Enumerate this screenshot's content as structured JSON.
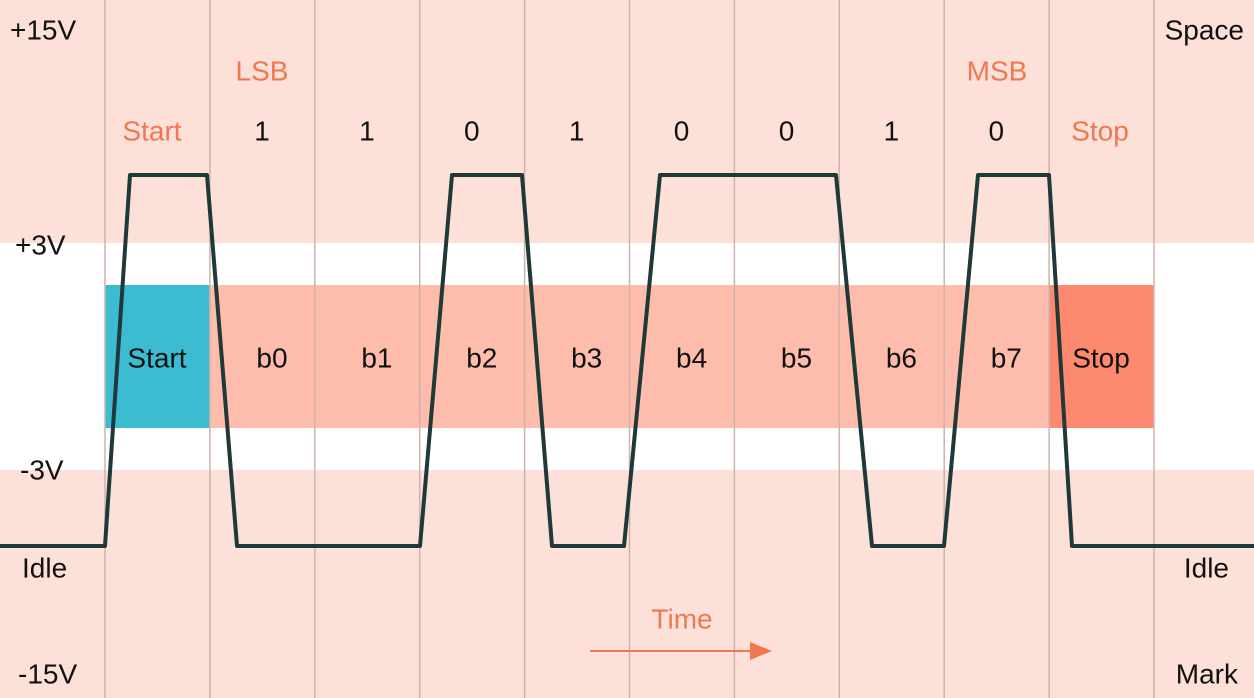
{
  "left_levels": [
    "+15V",
    "+3V",
    "-3V",
    "Idle",
    "-15V"
  ],
  "right_levels": [
    "Space",
    "Idle",
    "Mark"
  ],
  "markers": {
    "lsb": "LSB",
    "msb": "MSB"
  },
  "frame_row": {
    "start": "Start",
    "bits": [
      "1",
      "1",
      "0",
      "1",
      "0",
      "0",
      "1",
      "0"
    ],
    "stop": "Stop"
  },
  "fields": {
    "start": "Start",
    "bits": [
      "b0",
      "b1",
      "b2",
      "b3",
      "b4",
      "b5",
      "b6",
      "b7"
    ],
    "stop": "Stop"
  },
  "time_label": "Time"
}
